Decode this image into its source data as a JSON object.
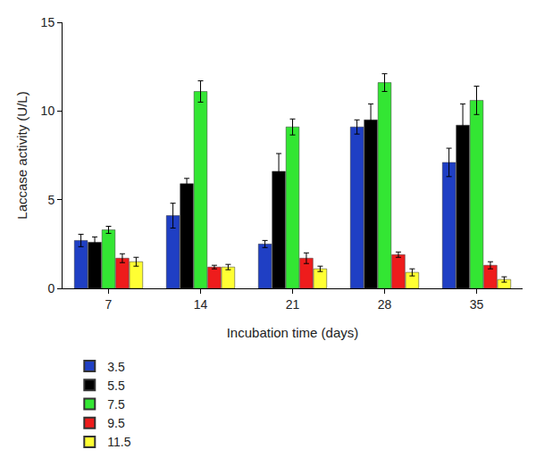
{
  "chart_data": {
    "type": "bar",
    "x_label": "Incubation time (days)",
    "y_label": "Laccase activity (U/L)",
    "categories": [
      "7",
      "14",
      "21",
      "28",
      "35"
    ],
    "series": [
      {
        "name": "3.5",
        "color": "#1f3fc4",
        "values": [
          2.7,
          4.1,
          2.5,
          9.1,
          7.1
        ],
        "errors": [
          0.35,
          0.7,
          0.2,
          0.4,
          0.8
        ]
      },
      {
        "name": "5.5",
        "color": "#000000",
        "values": [
          2.6,
          5.9,
          6.6,
          9.5,
          9.2
        ],
        "errors": [
          0.3,
          0.3,
          1.0,
          0.9,
          1.2
        ]
      },
      {
        "name": "7.5",
        "color": "#33e633",
        "values": [
          3.3,
          11.1,
          9.1,
          11.6,
          10.6
        ],
        "errors": [
          0.2,
          0.6,
          0.45,
          0.5,
          0.8
        ]
      },
      {
        "name": "9.5",
        "color": "#ee1c1c",
        "values": [
          1.7,
          1.2,
          1.7,
          1.9,
          1.3
        ],
        "errors": [
          0.25,
          0.1,
          0.3,
          0.15,
          0.2
        ]
      },
      {
        "name": "11.5",
        "color": "#ffff33",
        "values": [
          1.5,
          1.2,
          1.1,
          0.9,
          0.5
        ],
        "errors": [
          0.25,
          0.15,
          0.15,
          0.2,
          0.15
        ]
      }
    ],
    "ylim": [
      0,
      15
    ],
    "yticks": [
      0,
      5,
      10,
      15
    ],
    "grid": false,
    "legend": "bottom"
  }
}
